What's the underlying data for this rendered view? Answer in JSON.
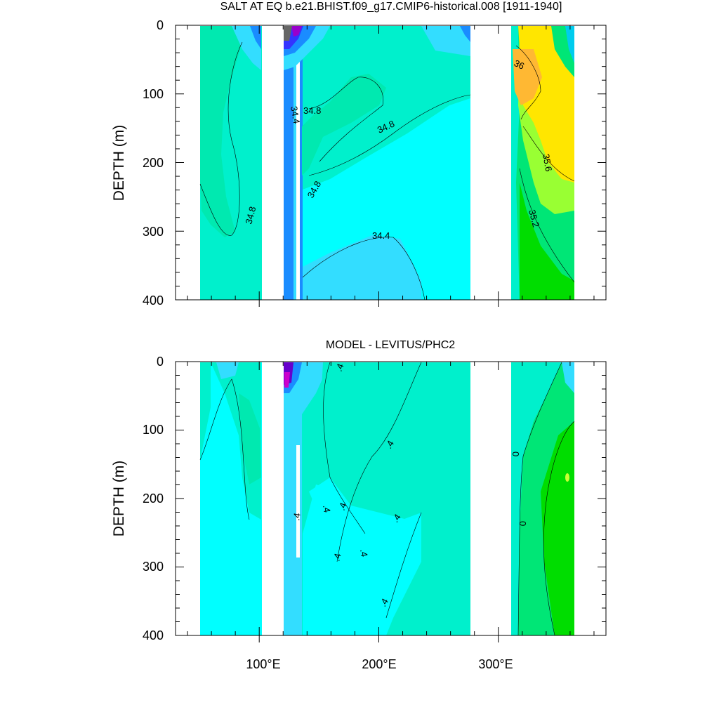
{
  "chart_data": [
    {
      "type": "heatmap",
      "title": "SALT AT EQ b.e21.BHIST.f09_g17.CMIP6-historical.008 [1911-1940]",
      "xlabel": "",
      "ylabel": "DEPTH (m)",
      "xlim": [
        30,
        390
      ],
      "ylim": [
        400,
        0
      ],
      "y_ticks": [
        "0",
        "100",
        "200",
        "300",
        "400"
      ],
      "x_ticks": [],
      "ocean_segments_lon": [
        [
          45,
          97
        ],
        [
          118,
          125
        ],
        [
          125,
          130
        ],
        [
          130,
          279
        ],
        [
          314,
          368
        ]
      ],
      "contour_labels": [
        "34.8",
        "34.8",
        "34.8",
        "34.8",
        "34.4",
        "34.4",
        "36",
        "35.6",
        "35.2"
      ],
      "colors": {
        "mean": "#00f0cc",
        "low": "#33ddff",
        "lower": "#1a8cff",
        "lowest": "#6600cc",
        "high": "#00e676",
        "higher": "#99ff33",
        "highest": "#ffe600",
        "peak": "#ffb833"
      }
    },
    {
      "type": "heatmap",
      "title": "MODEL - LEVITUS/PHC2",
      "xlabel": "",
      "ylabel": "DEPTH (m)",
      "xlim": [
        30,
        390
      ],
      "ylim": [
        400,
        0
      ],
      "y_ticks": [
        "0",
        "100",
        "200",
        "300",
        "400"
      ],
      "x_ticks": [
        "100°E",
        "200°E",
        "300°E"
      ],
      "contour_labels": [
        ".4",
        ".4",
        ".4",
        ".4",
        ".4",
        ".4",
        ".4",
        ".4",
        ".4",
        "0",
        "0"
      ],
      "colors": {
        "zero": "#00f0cc",
        "neg": "#33ddff",
        "more_neg": "#00ffff",
        "deep_neg": "#6600cc",
        "pos": "#00e676",
        "more_pos": "#00dd00",
        "max_pos": "#ccff33"
      }
    }
  ]
}
